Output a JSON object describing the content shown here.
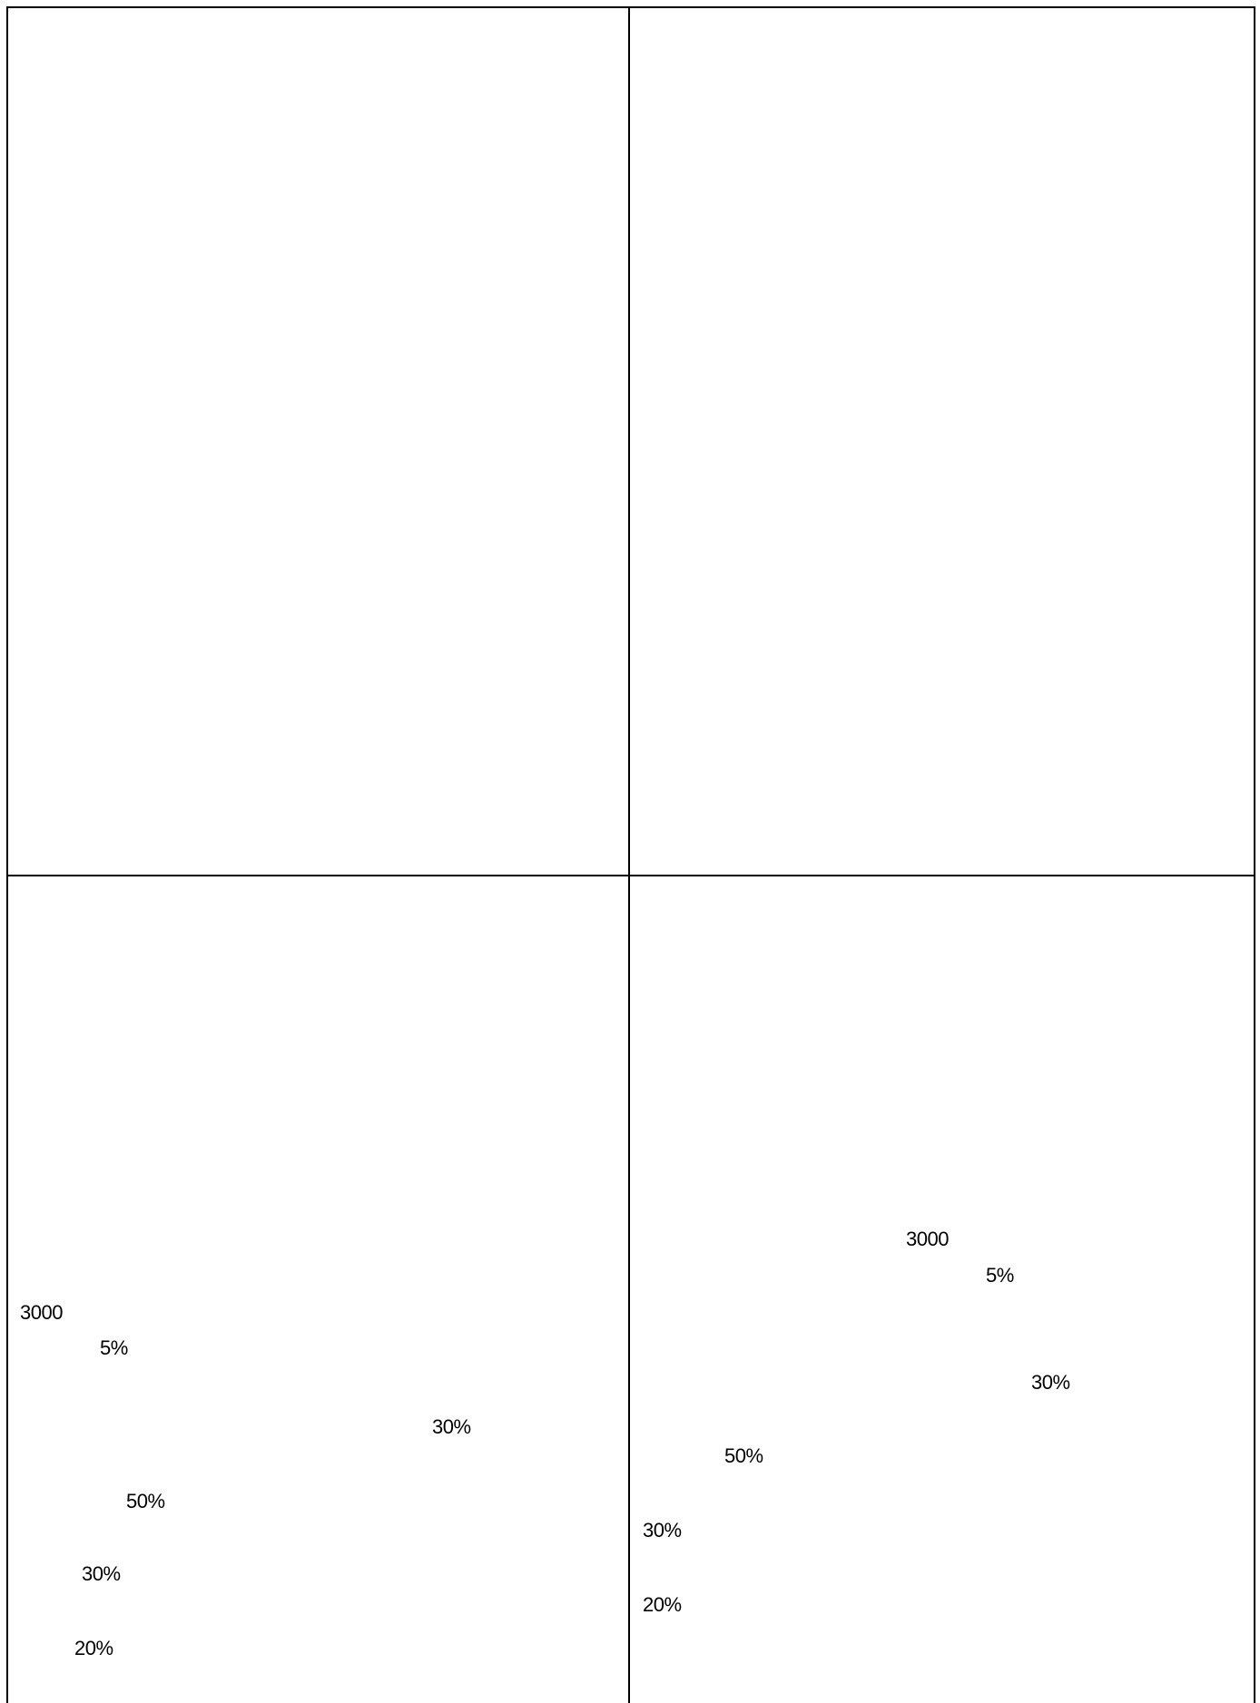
{
  "panels": {
    "bottom_left": {
      "labels": [
        "3000",
        "5%",
        "30%",
        "50%",
        "30%",
        "20%"
      ]
    },
    "bottom_right": {
      "labels": [
        "3000",
        "5%",
        "30%",
        "50%",
        "30%",
        "20%"
      ]
    }
  }
}
